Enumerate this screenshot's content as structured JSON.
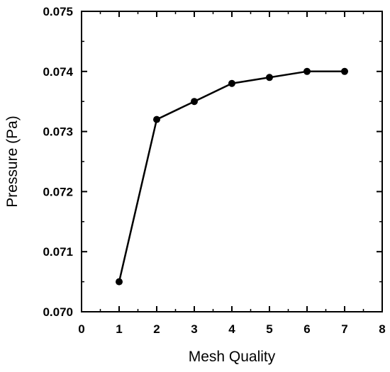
{
  "chart_data": {
    "type": "line",
    "title": "",
    "xlabel": "Mesh Quality",
    "ylabel": "Pressure (Pa)",
    "xlim": [
      0,
      8
    ],
    "ylim": [
      0.07,
      0.075
    ],
    "x_ticks": [
      0,
      1,
      2,
      3,
      4,
      5,
      6,
      7,
      8
    ],
    "x_tick_labels": [
      "0",
      "1",
      "2",
      "3",
      "4",
      "5",
      "6",
      "7",
      "8"
    ],
    "y_ticks": [
      0.07,
      0.071,
      0.072,
      0.073,
      0.074,
      0.075
    ],
    "y_tick_labels": [
      "0.070",
      "0.071",
      "0.072",
      "0.073",
      "0.074",
      "0.075"
    ],
    "grid": false,
    "legend": "none",
    "series": [
      {
        "x": [
          1,
          2,
          3,
          4,
          5,
          6,
          7
        ],
        "y": [
          0.0705,
          0.0732,
          0.0735,
          0.0738,
          0.0739,
          0.074,
          0.074
        ],
        "color": "#000000",
        "marker": "circle"
      }
    ]
  }
}
